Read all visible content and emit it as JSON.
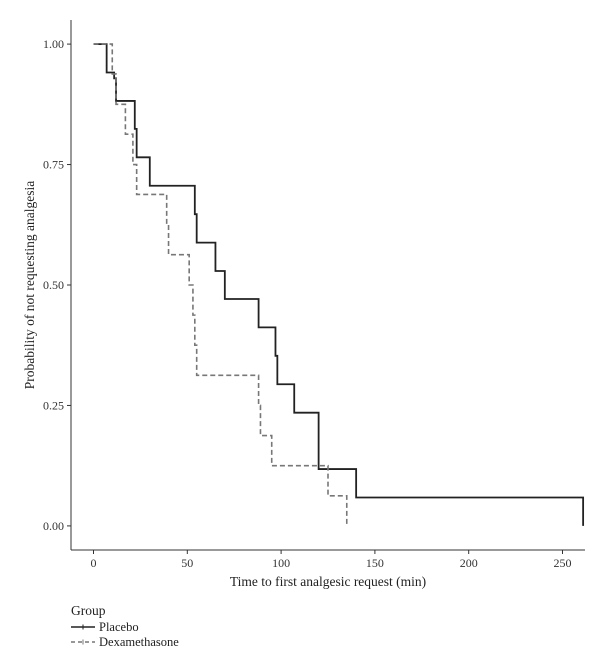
{
  "chart_data": {
    "type": "line",
    "step": true,
    "xlabel": "Time to first analgesic request (min)",
    "ylabel": "Probability of not requesting analgesia",
    "xlim": [
      -12,
      262
    ],
    "ylim": [
      -0.05,
      1.05
    ],
    "x_ticks": [
      0,
      50,
      100,
      150,
      200,
      250
    ],
    "y_ticks": [
      0.0,
      0.25,
      0.5,
      0.75,
      1.0
    ],
    "y_tick_labels": [
      "0.00",
      "0.25",
      "0.50",
      "0.75",
      "1.00"
    ],
    "x_tick_labels": [
      "0",
      "50",
      "100",
      "150",
      "200",
      "250"
    ],
    "grid": false,
    "legend": {
      "title": "Group",
      "placement": "bottom-left"
    },
    "series": [
      {
        "name": "Placebo",
        "color": "#222222",
        "dash": "solid",
        "x": [
          0,
          7,
          11,
          12,
          22,
          23,
          30,
          54,
          55,
          65,
          70,
          88,
          97,
          98,
          107,
          120,
          140,
          261
        ],
        "y": [
          1.0,
          0.941,
          0.929,
          0.882,
          0.824,
          0.765,
          0.706,
          0.647,
          0.588,
          0.529,
          0.471,
          0.412,
          0.353,
          0.294,
          0.235,
          0.118,
          0.059,
          0.0
        ]
      },
      {
        "name": "Dexamethasone",
        "color": "#777777",
        "dash": "dashed",
        "x": [
          0,
          10,
          12,
          17,
          21,
          23,
          39,
          40,
          51,
          53,
          54,
          55,
          59,
          88,
          89,
          95,
          125,
          127,
          135
        ],
        "y": [
          1.0,
          0.938,
          0.875,
          0.813,
          0.75,
          0.688,
          0.625,
          0.563,
          0.5,
          0.4375,
          0.375,
          0.3125,
          0.3125,
          0.25,
          0.1875,
          0.125,
          0.0625,
          0.0625,
          0.0
        ]
      }
    ]
  }
}
